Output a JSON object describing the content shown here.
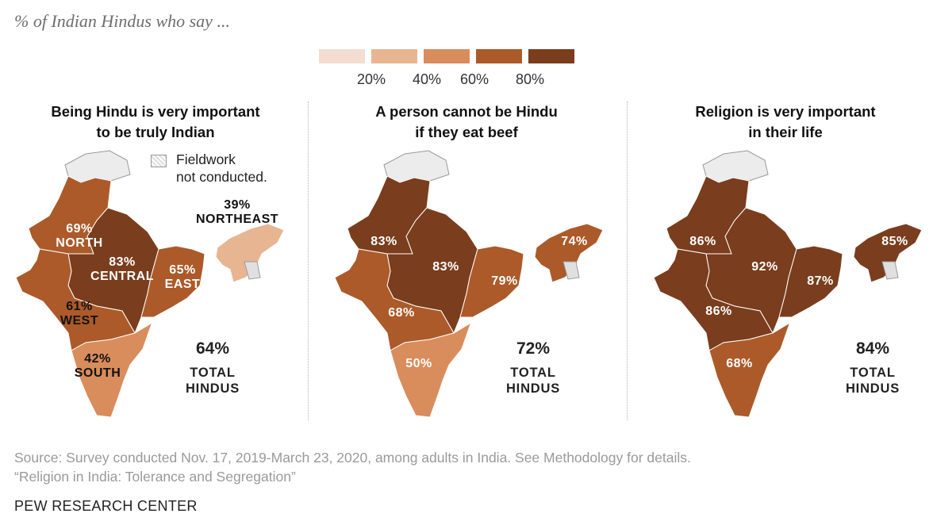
{
  "subtitle": "% of Indian Hindus who say ...",
  "legend": {
    "colors": [
      "#f2ddd0",
      "#e8b592",
      "#d98c5c",
      "#ac5a29",
      "#7a3d1d"
    ],
    "ticks": [
      "20%",
      "40%",
      "60%",
      "80%"
    ]
  },
  "fieldwork_note": {
    "line1": "Fieldwork",
    "line2": "not conducted."
  },
  "panels": [
    {
      "title_line1": "Being Hindu is very important",
      "title_line2": "to be truly Indian",
      "total_pct": "64%",
      "total_line1": "TOTAL",
      "total_line2": "HINDUS",
      "regions": {
        "north": {
          "pct": "69%",
          "name": "NORTH",
          "color": "#ac5a29"
        },
        "central": {
          "pct": "83%",
          "name": "CENTRAL",
          "color": "#7a3d1d"
        },
        "east": {
          "pct": "65%",
          "name": "EAST",
          "color": "#ac5a29"
        },
        "west": {
          "pct": "61%",
          "name": "WEST",
          "color": "#ac5a29"
        },
        "south": {
          "pct": "42%",
          "name": "SOUTH",
          "color": "#d98c5c"
        },
        "northeast": {
          "pct": "39%",
          "name": "NORTHEAST",
          "color": "#e8b592"
        }
      }
    },
    {
      "title_line1": "A person cannot be Hindu",
      "title_line2": "if they eat beef",
      "total_pct": "72%",
      "total_line1": "TOTAL",
      "total_line2": "HINDUS",
      "regions": {
        "north": {
          "pct": "83%",
          "color": "#7a3d1d"
        },
        "central": {
          "pct": "83%",
          "color": "#7a3d1d"
        },
        "east": {
          "pct": "79%",
          "color": "#ac5a29"
        },
        "west": {
          "pct": "68%",
          "color": "#ac5a29"
        },
        "south": {
          "pct": "50%",
          "color": "#d98c5c"
        },
        "northeast": {
          "pct": "74%",
          "color": "#ac5a29"
        }
      }
    },
    {
      "title_line1": "Religion is very important",
      "title_line2": "in their life",
      "total_pct": "84%",
      "total_line1": "TOTAL",
      "total_line2": "HINDUS",
      "regions": {
        "north": {
          "pct": "86%",
          "color": "#7a3d1d"
        },
        "central": {
          "pct": "92%",
          "color": "#7a3d1d"
        },
        "east": {
          "pct": "87%",
          "color": "#7a3d1d"
        },
        "west": {
          "pct": "86%",
          "color": "#7a3d1d"
        },
        "south": {
          "pct": "68%",
          "color": "#ac5a29"
        },
        "northeast": {
          "pct": "85%",
          "color": "#7a3d1d"
        }
      }
    }
  ],
  "source_line1": "Source: Survey conducted Nov. 17, 2019-March 23, 2020, among adults in India. See Methodology for details.",
  "source_line2": "“Religion in India: Tolerance and Segregation”",
  "brand": "PEW RESEARCH CENTER"
}
